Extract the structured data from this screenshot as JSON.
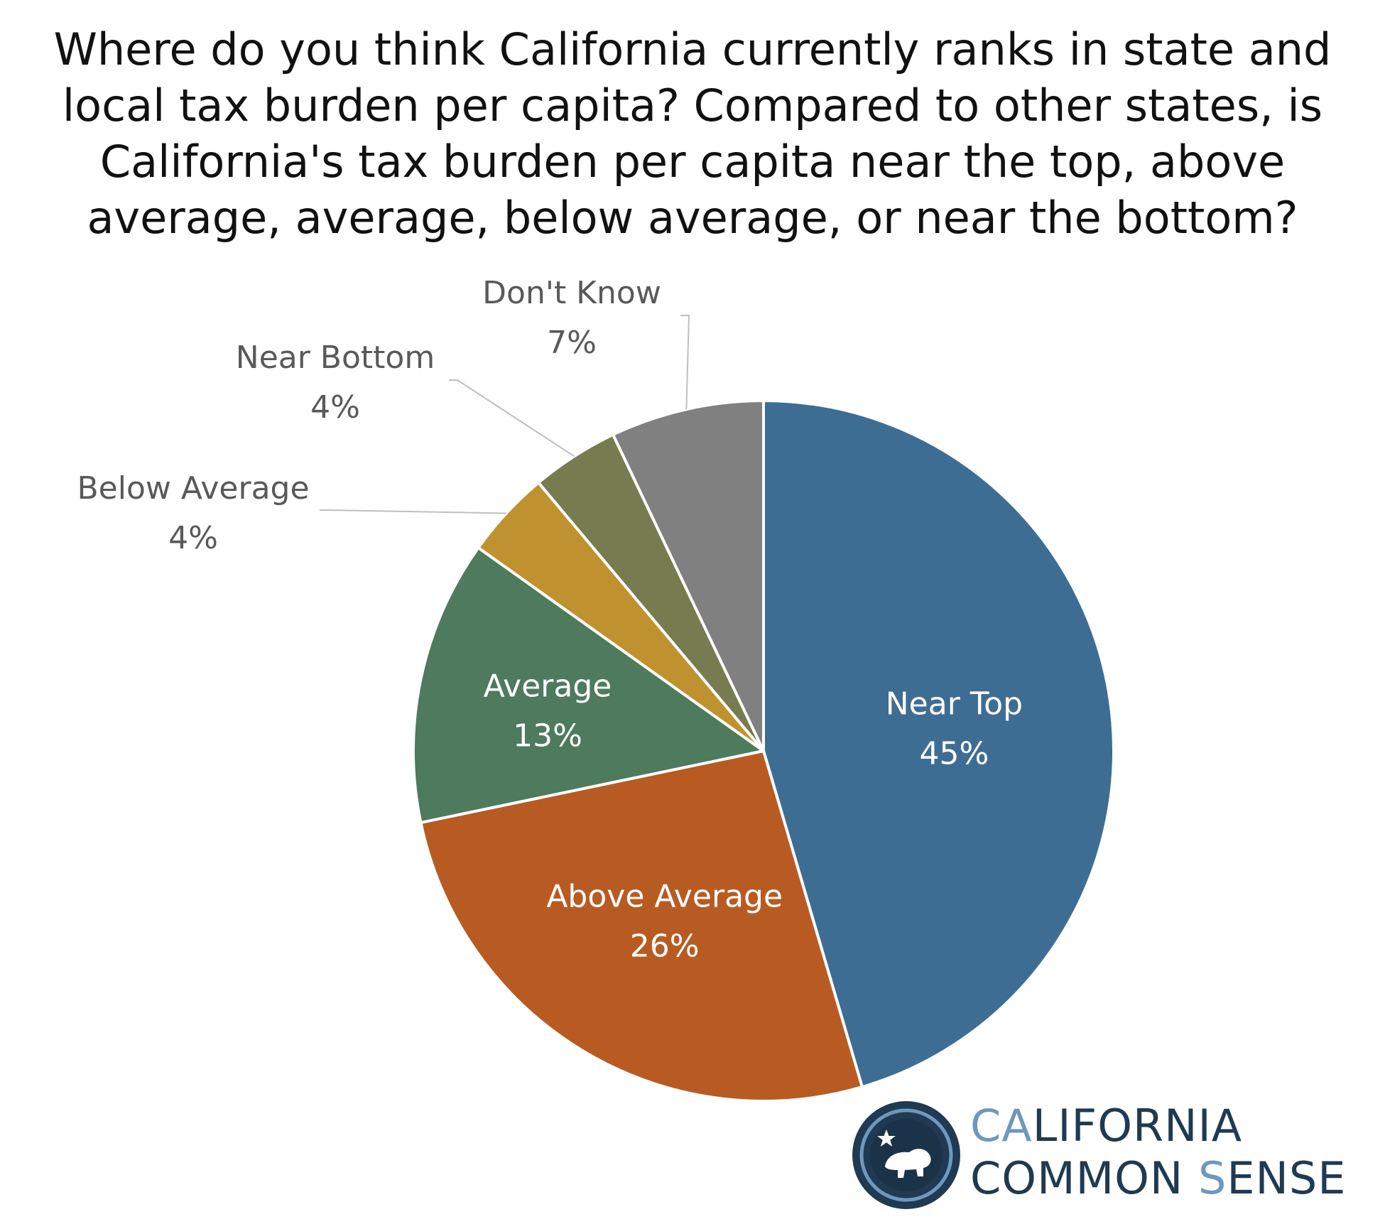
{
  "chart_data": {
    "type": "pie",
    "title_lines": [
      "Where do you think California currently ranks in state and",
      "local tax burden per capita? Compared to other states, is",
      "California's tax burden per capita near the top, above",
      "average, average, below average, or near the bottom?"
    ],
    "slices": [
      {
        "label": "Near Top",
        "value": 45,
        "display": "45%",
        "color": "#3e6d94"
      },
      {
        "label": "Above Average",
        "value": 26,
        "display": "26%",
        "color": "#b85b23"
      },
      {
        "label": "Average",
        "value": 13,
        "display": "13%",
        "color": "#4e7a5e"
      },
      {
        "label": "Below Average",
        "value": 4,
        "display": "4%",
        "color": "#c0922f"
      },
      {
        "label": "Near Bottom",
        "value": 4,
        "display": "4%",
        "color": "#767c4f"
      },
      {
        "label": "Don't Know",
        "value": 7,
        "display": "7%",
        "color": "#808080"
      }
    ],
    "start_angle": "12 o'clock",
    "direction": "clockwise",
    "legend": "none",
    "data_labels": "inside for large slices, outside with leader lines for small slices"
  },
  "brand": {
    "line1_accent": "CA",
    "line1_rest": "LIFORNIA",
    "line2_part1": "COMMON ",
    "line2_accent": "S",
    "line2_rest": "ENSE",
    "logo_icon": "bear-star-seal-icon",
    "colors": {
      "dark": "#1f3a52",
      "accent": "#6e98bd"
    }
  }
}
